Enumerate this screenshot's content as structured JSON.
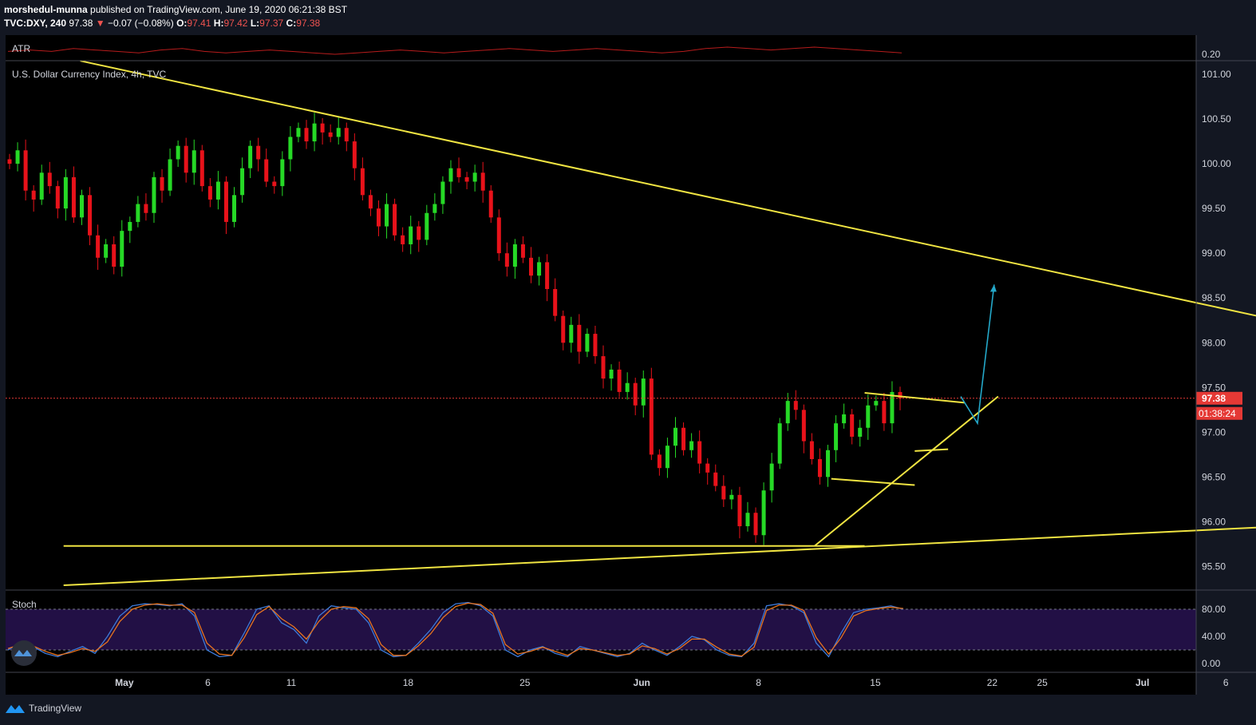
{
  "header": {
    "author": "morshedul-munna",
    "published_text": "published on TradingView.com, June 19, 2020 06:21:38 BST",
    "symbol": "TVC:DXY, 240",
    "last": "97.38",
    "change": "−0.07 (−0.08%)",
    "o_label": "O:",
    "o": "97.41",
    "h_label": "H:",
    "h": "97.42",
    "l_label": "L:",
    "l": "97.37",
    "c_label": "C:",
    "c": "97.38"
  },
  "footer": {
    "brand": "TradingView",
    "logo_icon": "tradingview-logo-icon"
  },
  "colors": {
    "up": "#26d926",
    "down": "#e8121a",
    "trendline": "#f0e442",
    "arrow": "#24a8c9",
    "price_line": "#e53935",
    "stoch_k": "#3c7ad9",
    "stoch_d": "#e8731e",
    "stoch_bg": "#221045",
    "atr": "#b71c1c"
  },
  "chart_data": [
    {
      "type": "line",
      "title": "ATR",
      "axis_label": "0.20",
      "series": [
        {
          "values": [
            0.2,
            0.21,
            0.2,
            0.22,
            0.21,
            0.2,
            0.19,
            0.21,
            0.22,
            0.2,
            0.19,
            0.2,
            0.21,
            0.2,
            0.19,
            0.18,
            0.19,
            0.2,
            0.21,
            0.2,
            0.19,
            0.2,
            0.21,
            0.22,
            0.21,
            0.2,
            0.21,
            0.22,
            0.21,
            0.2,
            0.19,
            0.2,
            0.22,
            0.23,
            0.22,
            0.21,
            0.22,
            0.23,
            0.22,
            0.21,
            0.2,
            0.19
          ]
        }
      ]
    },
    {
      "type": "candlestick",
      "title": "U.S. Dollar Currency Index, 4h, TVC",
      "y_ticks": [
        "101.00",
        "100.50",
        "100.00",
        "99.50",
        "99.00",
        "98.50",
        "98.00",
        "97.50",
        "97.00",
        "96.50",
        "96.00",
        "95.50"
      ],
      "ylim": [
        95.27,
        101.05
      ],
      "x_ticks": [
        "May",
        "6",
        "11",
        "18",
        "25",
        "Jun",
        "8",
        "15",
        "22",
        "25",
        "Jul",
        "6"
      ],
      "last_price_label": "97.38",
      "countdown_label": "01:38:24",
      "last_price": 97.38,
      "closes": [
        100.0,
        100.15,
        99.7,
        99.6,
        99.9,
        99.75,
        99.5,
        99.85,
        99.4,
        99.65,
        99.2,
        98.95,
        99.1,
        98.85,
        99.25,
        99.35,
        99.55,
        99.45,
        99.85,
        99.7,
        100.05,
        100.2,
        99.9,
        100.15,
        99.75,
        99.6,
        99.8,
        99.35,
        99.65,
        99.95,
        100.2,
        100.05,
        99.8,
        99.75,
        100.05,
        100.3,
        100.4,
        100.25,
        100.45,
        100.35,
        100.3,
        100.4,
        100.25,
        99.95,
        99.65,
        99.5,
        99.3,
        99.55,
        99.2,
        99.1,
        99.3,
        99.15,
        99.45,
        99.55,
        99.8,
        99.95,
        99.85,
        99.8,
        99.9,
        99.7,
        99.4,
        99.0,
        98.85,
        99.1,
        98.95,
        98.75,
        98.9,
        98.6,
        98.3,
        98.0,
        98.2,
        97.9,
        98.1,
        97.85,
        97.6,
        97.7,
        97.45,
        97.55,
        97.3,
        97.6,
        96.75,
        96.6,
        96.85,
        97.05,
        96.8,
        96.9,
        96.65,
        96.55,
        96.4,
        96.25,
        96.3,
        95.95,
        96.1,
        95.85,
        96.35,
        96.65,
        97.1,
        97.35,
        97.25,
        96.9,
        96.7,
        96.5,
        96.8,
        97.1,
        97.2,
        96.95,
        97.05,
        97.3,
        97.35,
        97.1,
        97.45,
        97.38
      ],
      "trendlines": [
        {
          "name": "descending-resistance",
          "points": [
            [
              "Apr 28",
              101.15
            ],
            [
              "Jul 8",
              98.28
            ]
          ]
        },
        {
          "name": "long-rising-support",
          "points": [
            [
              "Apr 27",
              95.29
            ],
            [
              "Jul 8",
              95.94
            ]
          ]
        },
        {
          "name": "horizontal-support",
          "points": [
            [
              "Apr 27",
              95.73
            ],
            [
              "Jun 14",
              95.73
            ]
          ]
        },
        {
          "name": "rising-support",
          "points": [
            [
              "Jun 11",
              95.73
            ],
            [
              "Jun 22",
              97.4
            ]
          ]
        },
        {
          "name": "channel-top",
          "points": [
            [
              "Jun 14",
              97.44
            ],
            [
              "Jun 20",
              97.33
            ]
          ]
        },
        {
          "name": "channel-mid",
          "points": [
            [
              "Jun 17",
              96.79
            ],
            [
              "Jun 19",
              96.81
            ]
          ]
        },
        {
          "name": "channel-bottom",
          "points": [
            [
              "Jun 12",
              96.48
            ],
            [
              "Jun 17",
              96.41
            ]
          ]
        }
      ],
      "projection": [
        [
          "Jun 20",
          97.4
        ],
        [
          "Jun 21",
          97.1
        ],
        [
          "Jun 22",
          98.65
        ]
      ]
    },
    {
      "type": "line",
      "title": "Stoch",
      "y_ticks": [
        "80.00",
        "40.00",
        "0.00"
      ],
      "ylim": [
        -10,
        100
      ],
      "band": [
        20,
        80
      ],
      "series": [
        {
          "name": "k",
          "values": [
            20,
            30,
            25,
            15,
            10,
            18,
            25,
            15,
            40,
            70,
            85,
            88,
            87,
            85,
            88,
            70,
            20,
            10,
            12,
            45,
            80,
            85,
            60,
            50,
            30,
            70,
            85,
            82,
            80,
            60,
            20,
            10,
            12,
            30,
            50,
            75,
            88,
            90,
            85,
            70,
            20,
            10,
            20,
            25,
            15,
            10,
            25,
            20,
            15,
            10,
            15,
            30,
            20,
            12,
            25,
            40,
            35,
            20,
            12,
            10,
            30,
            85,
            88,
            85,
            75,
            30,
            10,
            45,
            75,
            80,
            82,
            85,
            80
          ]
        },
        {
          "name": "d",
          "values": [
            22,
            28,
            26,
            18,
            12,
            16,
            22,
            18,
            32,
            62,
            80,
            86,
            88,
            86,
            86,
            75,
            30,
            14,
            12,
            38,
            72,
            84,
            66,
            54,
            36,
            62,
            80,
            84,
            82,
            66,
            28,
            12,
            12,
            26,
            44,
            68,
            84,
            89,
            87,
            74,
            28,
            14,
            18,
            24,
            18,
            12,
            22,
            20,
            16,
            12,
            14,
            26,
            22,
            14,
            22,
            36,
            36,
            24,
            14,
            11,
            24,
            78,
            86,
            86,
            78,
            38,
            14,
            38,
            70,
            78,
            81,
            83,
            81
          ]
        }
      ]
    }
  ]
}
